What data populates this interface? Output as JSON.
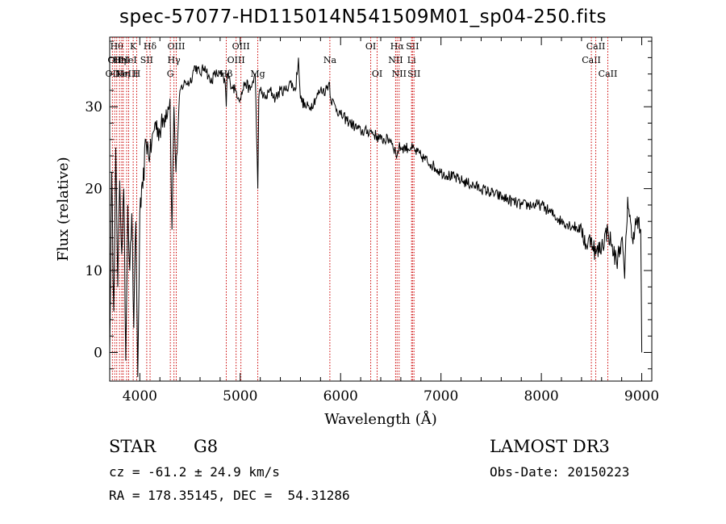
{
  "header": {
    "title": "spec-57077-HD115014N541509M01_sp04-250.fits"
  },
  "info": {
    "object_class": "STAR",
    "subclass": "G8",
    "survey": "LAMOST DR3",
    "cz": "cz = -61.2 ± 24.9 km/s",
    "obs_date": "Obs-Date: 20150223",
    "coords": "RA = 178.35145, DEC =  54.31286"
  },
  "chart_data": {
    "type": "line",
    "title": "spec-57077-HD115014N541509M01_sp04-250.fits",
    "xlabel": "Wavelength (Å)",
    "ylabel": "Flux (relative)",
    "xlim": [
      3700,
      9100
    ],
    "ylim": [
      -3.5,
      38.5
    ],
    "xticks": [
      4000,
      5000,
      6000,
      7000,
      8000,
      9000
    ],
    "yticks": [
      0,
      10,
      20,
      30
    ],
    "grid": false,
    "line_color": "#000000",
    "marker_color": "#cc0000",
    "series": [
      {
        "name": "flux",
        "x": [
          3700,
          3720,
          3740,
          3760,
          3780,
          3800,
          3820,
          3840,
          3860,
          3880,
          3900,
          3920,
          3940,
          3960,
          3980,
          4000,
          4030,
          4060,
          4100,
          4150,
          4200,
          4250,
          4300,
          4320,
          4340,
          4360,
          4400,
          4450,
          4500,
          4550,
          4600,
          4650,
          4700,
          4750,
          4800,
          4850,
          4861,
          4870,
          4900,
          4950,
          5000,
          5050,
          5100,
          5150,
          5175,
          5185,
          5200,
          5250,
          5300,
          5350,
          5400,
          5450,
          5500,
          5550,
          5580,
          5600,
          5650,
          5700,
          5750,
          5800,
          5850,
          5890,
          5900,
          5950,
          6000,
          6100,
          6200,
          6300,
          6400,
          6500,
          6563,
          6580,
          6600,
          6700,
          6800,
          6900,
          7000,
          7200,
          7400,
          7600,
          7800,
          8000,
          8200,
          8400,
          8450,
          8500,
          8542,
          8600,
          8662,
          8700,
          8750,
          8800,
          8830,
          8860,
          8900,
          8950,
          8990,
          9000
        ],
        "y": [
          0,
          22,
          5,
          25,
          8,
          21,
          12,
          20,
          -1,
          18,
          10,
          17,
          3,
          16,
          -3,
          17,
          20,
          26,
          24,
          28,
          27,
          29,
          31,
          15,
          30,
          22,
          32,
          33,
          33,
          35,
          34,
          35,
          33,
          34,
          34,
          33,
          30,
          34,
          33,
          32,
          31,
          33,
          32,
          34,
          20,
          31,
          32,
          31,
          32,
          31,
          32,
          32,
          33,
          32,
          36,
          31,
          30,
          30,
          31,
          32,
          32,
          33,
          31,
          30,
          29,
          28,
          27,
          27,
          26,
          26,
          24,
          25,
          25,
          25,
          24,
          23,
          22,
          21,
          20,
          19,
          18,
          18,
          16,
          15,
          13,
          14,
          12,
          13,
          15,
          13,
          11,
          14,
          9,
          19,
          14,
          16,
          15,
          0
        ]
      }
    ],
    "lines": [
      {
        "wave": 3727,
        "label": "OII",
        "row": 2
      },
      {
        "wave": 3750,
        "label": "OII",
        "row": 1
      },
      {
        "wave": 3770,
        "label": "Hθ",
        "row": 0
      },
      {
        "wave": 3798,
        "label": "Hη",
        "row": 1
      },
      {
        "wave": 3820,
        "label": "HeI",
        "row": 1
      },
      {
        "wave": 3835,
        "label": "Hη",
        "row": 2
      },
      {
        "wave": 3869,
        "label": "NeIII",
        "row": 2
      },
      {
        "wave": 3889,
        "label": "HeI",
        "row": 1
      },
      {
        "wave": 3934,
        "label": "K",
        "row": 0
      },
      {
        "wave": 3969,
        "label": "H",
        "row": 2
      },
      {
        "wave": 4069,
        "label": "SII",
        "row": 1
      },
      {
        "wave": 4102,
        "label": "Hδ",
        "row": 0
      },
      {
        "wave": 4304,
        "label": "G",
        "row": 2
      },
      {
        "wave": 4340,
        "label": "Hγ",
        "row": 1
      },
      {
        "wave": 4363,
        "label": "OIII",
        "row": 0
      },
      {
        "wave": 4861,
        "label": "Hβ",
        "row": 2
      },
      {
        "wave": 4959,
        "label": "OIII",
        "row": 1
      },
      {
        "wave": 5007,
        "label": "OIII",
        "row": 0
      },
      {
        "wave": 5175,
        "label": "Mg",
        "row": 2
      },
      {
        "wave": 5893,
        "label": "Na",
        "row": 1
      },
      {
        "wave": 6300,
        "label": "OI",
        "row": 0
      },
      {
        "wave": 6364,
        "label": "OI",
        "row": 2
      },
      {
        "wave": 6548,
        "label": "NII",
        "row": 1
      },
      {
        "wave": 6563,
        "label": "Hα",
        "row": 0
      },
      {
        "wave": 6583,
        "label": "NII",
        "row": 2
      },
      {
        "wave": 6707,
        "label": "Li",
        "row": 1
      },
      {
        "wave": 6716,
        "label": "SII",
        "row": 0
      },
      {
        "wave": 6731,
        "label": "SII",
        "row": 2
      },
      {
        "wave": 8498,
        "label": "CaII",
        "row": 1
      },
      {
        "wave": 8542,
        "label": "CaII",
        "row": 0
      },
      {
        "wave": 8662,
        "label": "CaII",
        "row": 2
      }
    ]
  }
}
